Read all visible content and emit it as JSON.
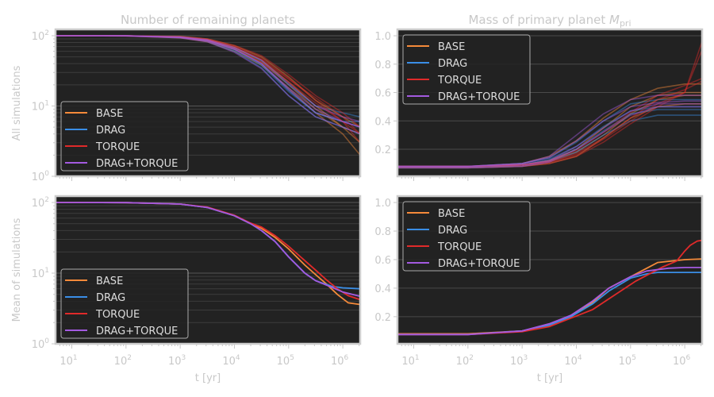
{
  "chart_data": [
    {
      "panel": "top-left",
      "type": "line",
      "title": "Number of remaining planets",
      "ylabel": "All simulations",
      "xlabel": "",
      "xscale": "log",
      "yscale": "log",
      "xlim_log10": [
        0.7,
        6.32
      ],
      "ylim": [
        1,
        123
      ],
      "x_tick_labels": [],
      "y_ticks": [
        {
          "value": 1,
          "base": "10",
          "exp": "0"
        },
        {
          "value": 10,
          "base": "10",
          "exp": "1"
        },
        {
          "value": 100,
          "base": "10",
          "exp": "2"
        }
      ],
      "legend": "lower-left",
      "x_log10": [
        0.7,
        2,
        3,
        3.5,
        4,
        4.5,
        5,
        5.5,
        6,
        6.32
      ],
      "series": [
        {
          "name": "BASE",
          "color": "#f58a3a",
          "runs": [
            [
              100,
              100,
              96,
              88,
              68,
              45,
              22,
              10,
              5,
              3
            ],
            [
              100,
              99,
              93,
              82,
              60,
              38,
              18,
              8,
              4,
              2
            ],
            [
              100,
              100,
              97,
              90,
              72,
              50,
              26,
              12,
              7,
              5
            ],
            [
              100,
              100,
              95,
              86,
              66,
              42,
              20,
              9,
              5,
              4
            ]
          ]
        },
        {
          "name": "DRAG",
          "color": "#3a8ee6",
          "runs": [
            [
              100,
              100,
              95,
              85,
              63,
              38,
              16,
              8,
              6,
              6
            ],
            [
              100,
              99,
              94,
              83,
              60,
              35,
              14,
              7,
              5,
              4
            ],
            [
              100,
              100,
              96,
              88,
              68,
              44,
              20,
              10,
              8,
              7
            ],
            [
              100,
              100,
              95,
              86,
              65,
              40,
              17,
              8,
              6,
              5
            ]
          ]
        },
        {
          "name": "TORQUE",
          "color": "#e02a2a",
          "runs": [
            [
              100,
              100,
              96,
              88,
              70,
              48,
              25,
              12,
              6,
              3
            ],
            [
              100,
              100,
              97,
              90,
              73,
              52,
              28,
              14,
              8,
              5
            ],
            [
              100,
              99,
              94,
              84,
              64,
              42,
              22,
              11,
              6,
              4
            ],
            [
              100,
              100,
              96,
              87,
              68,
              46,
              24,
              13,
              7,
              4
            ]
          ]
        },
        {
          "name": "DRAG+TORQUE",
          "color": "#a35ae0",
          "runs": [
            [
              100,
              100,
              95,
              85,
              64,
              40,
              17,
              8,
              6,
              5
            ],
            [
              100,
              99,
              93,
              82,
              58,
              34,
              14,
              7,
              5,
              4
            ],
            [
              100,
              100,
              96,
              88,
              68,
              45,
              21,
              10,
              7,
              6
            ],
            [
              100,
              100,
              95,
              86,
              64,
              40,
              18,
              9,
              6,
              5
            ]
          ]
        }
      ]
    },
    {
      "panel": "top-right",
      "type": "line",
      "title": "Mass of primary planet ",
      "title_math": "M",
      "title_sub": "pri",
      "xlabel": "",
      "xscale": "log",
      "yscale": "linear",
      "xlim_log10": [
        0.7,
        6.32
      ],
      "ylim": [
        0.01,
        1.045
      ],
      "x_tick_labels": [],
      "y_ticks": [
        {
          "value": 0.2,
          "label": "0.2"
        },
        {
          "value": 0.4,
          "label": "0.4"
        },
        {
          "value": 0.6,
          "label": "0.6"
        },
        {
          "value": 0.8,
          "label": "0.8"
        },
        {
          "value": 1.0,
          "label": "1.0"
        }
      ],
      "legend": "upper-left",
      "x_log10": [
        0.7,
        2,
        3,
        3.5,
        4,
        4.5,
        5,
        5.5,
        6,
        6.32
      ],
      "series": [
        {
          "name": "BASE",
          "color": "#f58a3a",
          "runs": [
            [
              0.08,
              0.08,
              0.09,
              0.12,
              0.2,
              0.35,
              0.5,
              0.58,
              0.6,
              0.6
            ],
            [
              0.07,
              0.07,
              0.08,
              0.1,
              0.15,
              0.28,
              0.42,
              0.5,
              0.52,
              0.52
            ],
            [
              0.08,
              0.08,
              0.1,
              0.15,
              0.26,
              0.42,
              0.55,
              0.63,
              0.66,
              0.66
            ],
            [
              0.08,
              0.08,
              0.09,
              0.12,
              0.18,
              0.3,
              0.45,
              0.55,
              0.58,
              0.58
            ]
          ]
        },
        {
          "name": "DRAG",
          "color": "#3a8ee6",
          "runs": [
            [
              0.07,
              0.07,
              0.09,
              0.13,
              0.22,
              0.36,
              0.47,
              0.5,
              0.5,
              0.5
            ],
            [
              0.08,
              0.08,
              0.1,
              0.14,
              0.25,
              0.4,
              0.52,
              0.55,
              0.55,
              0.55
            ],
            [
              0.07,
              0.07,
              0.08,
              0.11,
              0.18,
              0.3,
              0.4,
              0.44,
              0.44,
              0.44
            ],
            [
              0.08,
              0.08,
              0.09,
              0.12,
              0.2,
              0.33,
              0.45,
              0.48,
              0.48,
              0.48
            ]
          ]
        },
        {
          "name": "TORQUE",
          "color": "#e02a2a",
          "runs": [
            [
              0.08,
              0.08,
              0.09,
              0.11,
              0.17,
              0.28,
              0.42,
              0.55,
              0.62,
              0.68
            ],
            [
              0.07,
              0.07,
              0.08,
              0.1,
              0.15,
              0.25,
              0.38,
              0.5,
              0.6,
              0.96
            ],
            [
              0.08,
              0.08,
              0.09,
              0.12,
              0.19,
              0.32,
              0.46,
              0.58,
              0.65,
              0.7
            ],
            [
              0.08,
              0.08,
              0.09,
              0.11,
              0.16,
              0.27,
              0.4,
              0.52,
              0.6,
              0.9
            ]
          ]
        },
        {
          "name": "DRAG+TORQUE",
          "color": "#a35ae0",
          "runs": [
            [
              0.08,
              0.08,
              0.1,
              0.14,
              0.26,
              0.4,
              0.5,
              0.53,
              0.54,
              0.54
            ],
            [
              0.07,
              0.07,
              0.08,
              0.11,
              0.2,
              0.32,
              0.44,
              0.5,
              0.5,
              0.5
            ],
            [
              0.08,
              0.08,
              0.1,
              0.15,
              0.3,
              0.45,
              0.55,
              0.58,
              0.58,
              0.58
            ],
            [
              0.08,
              0.08,
              0.09,
              0.12,
              0.22,
              0.35,
              0.47,
              0.52,
              0.52,
              0.52
            ]
          ]
        }
      ]
    },
    {
      "panel": "bottom-left",
      "type": "line",
      "title": "",
      "ylabel": "Mean of simulations",
      "xlabel": "t [yr]",
      "xscale": "log",
      "yscale": "log",
      "xlim_log10": [
        0.7,
        6.32
      ],
      "ylim": [
        1,
        123
      ],
      "x_tick_labels": [
        {
          "value": 1,
          "base": "10",
          "exp": "1"
        },
        {
          "value": 2,
          "base": "10",
          "exp": "2"
        },
        {
          "value": 3,
          "base": "10",
          "exp": "3"
        },
        {
          "value": 4,
          "base": "10",
          "exp": "4"
        },
        {
          "value": 5,
          "base": "10",
          "exp": "5"
        },
        {
          "value": 6,
          "base": "10",
          "exp": "6"
        }
      ],
      "y_ticks": [
        {
          "value": 1,
          "base": "10",
          "exp": "0"
        },
        {
          "value": 10,
          "base": "10",
          "exp": "1"
        },
        {
          "value": 100,
          "base": "10",
          "exp": "2"
        }
      ],
      "legend": "lower-left",
      "series": [
        {
          "name": "BASE",
          "color": "#f58a3a",
          "x_log10": [
            0.7,
            2,
            3,
            3.5,
            4,
            4.3,
            4.5,
            4.75,
            5,
            5.3,
            5.5,
            5.7,
            5.9,
            6.1,
            6.32
          ],
          "values": [
            100,
            99.5,
            95,
            85,
            65,
            50,
            43,
            32,
            22,
            13,
            9.5,
            7,
            5,
            3.8,
            3.6
          ]
        },
        {
          "name": "DRAG",
          "color": "#3a8ee6",
          "x_log10": [
            0.7,
            2,
            3,
            3.5,
            4,
            4.3,
            4.5,
            4.75,
            5,
            5.3,
            5.5,
            5.8,
            6,
            6.32
          ],
          "values": [
            100,
            99.5,
            95,
            85,
            65,
            50,
            40,
            28,
            17,
            10,
            7.8,
            6.5,
            6.2,
            6.0
          ]
        },
        {
          "name": "TORQUE",
          "color": "#e02a2a",
          "x_log10": [
            0.7,
            2,
            3,
            3.5,
            4,
            4.3,
            4.5,
            4.75,
            5,
            5.3,
            5.5,
            5.7,
            5.9,
            6.1,
            6.32
          ],
          "values": [
            100,
            99.5,
            95,
            86,
            66,
            51,
            45,
            34,
            24,
            15,
            11,
            8,
            6,
            4.8,
            4.2
          ]
        },
        {
          "name": "DRAG+TORQUE",
          "color": "#a35ae0",
          "x_log10": [
            0.7,
            2,
            3,
            3.5,
            4,
            4.3,
            4.5,
            4.75,
            5,
            5.3,
            5.5,
            5.8,
            6,
            6.32
          ],
          "values": [
            100,
            99.5,
            95,
            85,
            65,
            50,
            40,
            28,
            17,
            10,
            7.8,
            6.3,
            5.4,
            4.7
          ]
        }
      ]
    },
    {
      "panel": "bottom-right",
      "type": "line",
      "title": "",
      "xlabel": "t [yr]",
      "xscale": "log",
      "yscale": "linear",
      "xlim_log10": [
        0.7,
        6.32
      ],
      "ylim": [
        0.01,
        1.045
      ],
      "x_tick_labels": [
        {
          "value": 1,
          "base": "10",
          "exp": "1"
        },
        {
          "value": 2,
          "base": "10",
          "exp": "2"
        },
        {
          "value": 3,
          "base": "10",
          "exp": "3"
        },
        {
          "value": 4,
          "base": "10",
          "exp": "4"
        },
        {
          "value": 5,
          "base": "10",
          "exp": "5"
        },
        {
          "value": 6,
          "base": "10",
          "exp": "6"
        }
      ],
      "y_ticks": [
        {
          "value": 0.2,
          "label": "0.2"
        },
        {
          "value": 0.4,
          "label": "0.4"
        },
        {
          "value": 0.6,
          "label": "0.6"
        },
        {
          "value": 0.8,
          "label": "0.8"
        },
        {
          "value": 1.0,
          "label": "1.0"
        }
      ],
      "legend": "upper-left",
      "series": [
        {
          "name": "BASE",
          "color": "#f58a3a",
          "x_log10": [
            0.7,
            2,
            3,
            3.5,
            3.9,
            4.3,
            4.6,
            5,
            5.3,
            5.5,
            6,
            6.32
          ],
          "values": [
            0.08,
            0.08,
            0.1,
            0.14,
            0.2,
            0.3,
            0.4,
            0.48,
            0.54,
            0.58,
            0.6,
            0.605
          ]
        },
        {
          "name": "DRAG",
          "color": "#3a8ee6",
          "x_log10": [
            0.7,
            2,
            3,
            3.5,
            3.9,
            4.3,
            4.6,
            5,
            5.3,
            5.5,
            6,
            6.32
          ],
          "values": [
            0.075,
            0.075,
            0.1,
            0.14,
            0.2,
            0.29,
            0.38,
            0.47,
            0.5,
            0.51,
            0.51,
            0.51
          ]
        },
        {
          "name": "TORQUE",
          "color": "#e02a2a",
          "x_log10": [
            0.7,
            2,
            3,
            3.5,
            3.9,
            4.3,
            4.7,
            5.1,
            5.6,
            5.85,
            6,
            6.1,
            6.23,
            6.32
          ],
          "values": [
            0.075,
            0.075,
            0.095,
            0.13,
            0.19,
            0.25,
            0.35,
            0.45,
            0.55,
            0.59,
            0.66,
            0.7,
            0.73,
            0.735
          ]
        },
        {
          "name": "DRAG+TORQUE",
          "color": "#a35ae0",
          "x_log10": [
            0.7,
            2,
            3,
            3.5,
            3.9,
            4.3,
            4.6,
            5,
            5.3,
            5.7,
            6,
            6.32
          ],
          "values": [
            0.075,
            0.075,
            0.1,
            0.15,
            0.21,
            0.31,
            0.4,
            0.48,
            0.52,
            0.54,
            0.545,
            0.545
          ]
        }
      ]
    }
  ]
}
